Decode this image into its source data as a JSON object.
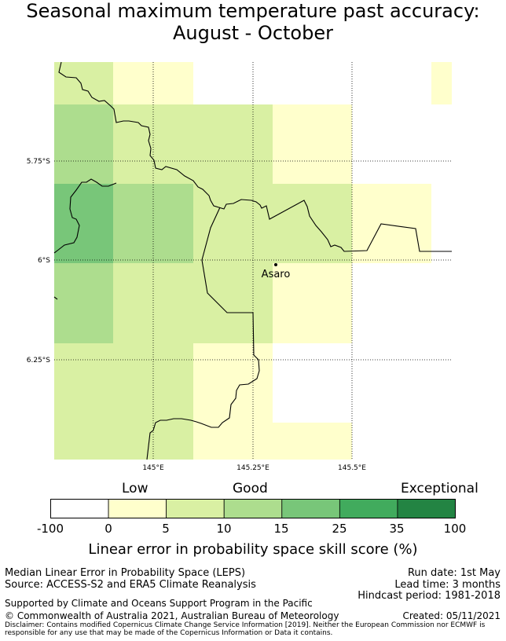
{
  "title_line1": "Seasonal maximum temperature past accuracy:",
  "title_line2": "August - October",
  "map": {
    "place_label": "Asaro",
    "lat_labels": [
      "5.75°S",
      "6°S",
      "6.25°S"
    ],
    "lon_labels": [
      "145°E",
      "145.25°E",
      "145.5°E"
    ]
  },
  "colorbar": {
    "category_low": "Low",
    "category_good": "Good",
    "category_exceptional": "Exceptional",
    "ticks": [
      "-100",
      "0",
      "5",
      "10",
      "15",
      "25",
      "35",
      "100"
    ],
    "colors": [
      "#ffffff",
      "#ffffcc",
      "#d9f0a3",
      "#addd8e",
      "#78c679",
      "#41ab5d",
      "#238443"
    ],
    "title": "Linear error in probability space skill score (%)"
  },
  "footer": {
    "method": "Median Linear Error in Probability Space (LEPS)",
    "source": "Source: ACCESS-S2 and ERA5 Climate Reanalysis",
    "run_date": "Run date: 1st May",
    "lead_time": "Lead time: 3 months",
    "hindcast": "Hindcast period: 1981-2018",
    "support": "Supported by Climate and Oceans Support Program in the Pacific",
    "copyright": "© Commonwealth of Australia 2021, Australian Bureau of Meteorology",
    "created": "Created: 05/11/2021",
    "disclaimer_line1": "Disclaimer: Contains modified Copernicus Climate Change Service Information [2019]. Neither the European Commission nor ECMWF is",
    "disclaimer_line2": "responsible for any use that may be made of the Copernicus Information or Data it contains."
  }
}
